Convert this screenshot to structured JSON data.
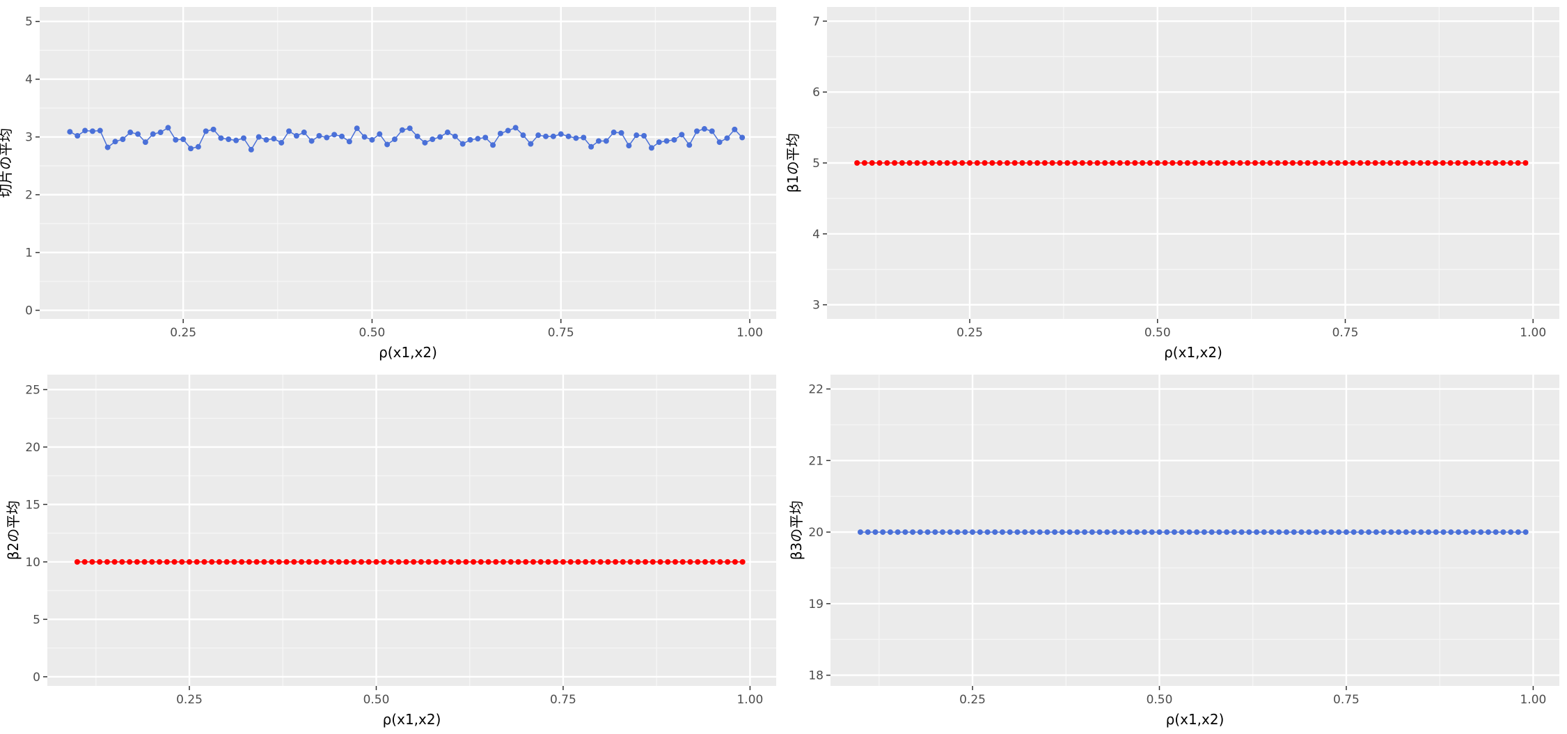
{
  "chart_data": [
    {
      "type": "line",
      "xlabel": "ρ(x1,x2)",
      "ylabel": "切片の平均",
      "xlim": [
        0.06,
        1.035
      ],
      "ylim": [
        -0.15,
        5.25
      ],
      "xticks": [
        0.25,
        0.5,
        0.75,
        1.0
      ],
      "xtick_labels": [
        "0.25",
        "0.50",
        "0.75",
        "1.00"
      ],
      "yticks": [
        0,
        1,
        2,
        3,
        4,
        5
      ],
      "ytick_labels": [
        "0",
        "1",
        "2",
        "3",
        "4",
        "5"
      ],
      "grid": true,
      "color": "#4a70d8",
      "x": [
        0.1,
        0.11,
        0.12,
        0.13,
        0.14,
        0.15,
        0.16,
        0.17,
        0.18,
        0.19,
        0.2,
        0.21,
        0.22,
        0.23,
        0.24,
        0.25,
        0.26,
        0.27,
        0.28,
        0.29,
        0.3,
        0.31,
        0.32,
        0.33,
        0.34,
        0.35,
        0.36,
        0.37,
        0.38,
        0.39,
        0.4,
        0.41,
        0.42,
        0.43,
        0.44,
        0.45,
        0.46,
        0.47,
        0.48,
        0.49,
        0.5,
        0.51,
        0.52,
        0.53,
        0.54,
        0.55,
        0.56,
        0.57,
        0.58,
        0.59,
        0.6,
        0.61,
        0.62,
        0.63,
        0.64,
        0.65,
        0.66,
        0.67,
        0.68,
        0.69,
        0.7,
        0.71,
        0.72,
        0.73,
        0.74,
        0.75,
        0.76,
        0.77,
        0.78,
        0.79,
        0.8,
        0.81,
        0.82,
        0.83,
        0.84,
        0.85,
        0.86,
        0.87,
        0.88,
        0.89,
        0.9,
        0.91,
        0.92,
        0.93,
        0.94,
        0.95,
        0.96,
        0.97,
        0.98,
        0.99
      ],
      "y": [
        3.09,
        3.02,
        3.11,
        3.1,
        3.11,
        2.82,
        2.92,
        2.96,
        3.08,
        3.05,
        2.91,
        3.05,
        3.08,
        3.16,
        2.95,
        2.96,
        2.8,
        2.83,
        3.1,
        3.13,
        2.98,
        2.96,
        2.94,
        2.98,
        2.78,
        3.0,
        2.95,
        2.97,
        2.9,
        3.1,
        3.02,
        3.08,
        2.93,
        3.02,
        2.99,
        3.04,
        3.01,
        2.92,
        3.15,
        3.0,
        2.95,
        3.05,
        2.87,
        2.96,
        3.12,
        3.15,
        3.01,
        2.9,
        2.96,
        3.0,
        3.08,
        3.01,
        2.88,
        2.95,
        2.97,
        2.99,
        2.86,
        3.06,
        3.11,
        3.16,
        3.03,
        2.88,
        3.03,
        3.01,
        3.01,
        3.05,
        3.01,
        2.98,
        2.99,
        2.83,
        2.93,
        2.93,
        3.08,
        3.07,
        2.85,
        3.03,
        3.02,
        2.81,
        2.91,
        2.93,
        2.95,
        3.04,
        2.86,
        3.1,
        3.14,
        3.1,
        2.91,
        2.98,
        3.13,
        2.99
      ]
    },
    {
      "type": "line",
      "xlabel": "ρ(x1,x2)",
      "ylabel": "β1の平均",
      "xlim": [
        0.06,
        1.035
      ],
      "ylim": [
        2.8,
        7.2
      ],
      "xticks": [
        0.25,
        0.5,
        0.75,
        1.0
      ],
      "xtick_labels": [
        "0.25",
        "0.50",
        "0.75",
        "1.00"
      ],
      "yticks": [
        3,
        4,
        5,
        6,
        7
      ],
      "ytick_labels": [
        "3",
        "4",
        "5",
        "6",
        "7"
      ],
      "grid": true,
      "color": "#ff0000",
      "x_start": 0.1,
      "x_step": 0.01,
      "n": 90,
      "y_constant": 5.0
    },
    {
      "type": "line",
      "xlabel": "ρ(x1,x2)",
      "ylabel": "β2の平均",
      "xlim": [
        0.06,
        1.035
      ],
      "ylim": [
        -0.8,
        26.3
      ],
      "xticks": [
        0.25,
        0.5,
        0.75,
        1.0
      ],
      "xtick_labels": [
        "0.25",
        "0.50",
        "0.75",
        "1.00"
      ],
      "yticks": [
        0,
        5,
        10,
        15,
        20,
        25
      ],
      "ytick_labels": [
        "0",
        "5",
        "10",
        "15",
        "20",
        "25"
      ],
      "grid": true,
      "color": "#ff0000",
      "x_start": 0.1,
      "x_step": 0.01,
      "n": 90,
      "y_constant": 10.0
    },
    {
      "type": "line",
      "xlabel": "ρ(x1,x2)",
      "ylabel": "β3の平均",
      "xlim": [
        0.06,
        1.035
      ],
      "ylim": [
        17.85,
        22.2
      ],
      "xticks": [
        0.25,
        0.5,
        0.75,
        1.0
      ],
      "xtick_labels": [
        "0.25",
        "0.50",
        "0.75",
        "1.00"
      ],
      "yticks": [
        18,
        19,
        20,
        21,
        22
      ],
      "ytick_labels": [
        "18",
        "19",
        "20",
        "21",
        "22"
      ],
      "grid": true,
      "color": "#4a70d8",
      "x_start": 0.1,
      "x_step": 0.01,
      "n": 90,
      "y_constant": 20.0
    }
  ]
}
